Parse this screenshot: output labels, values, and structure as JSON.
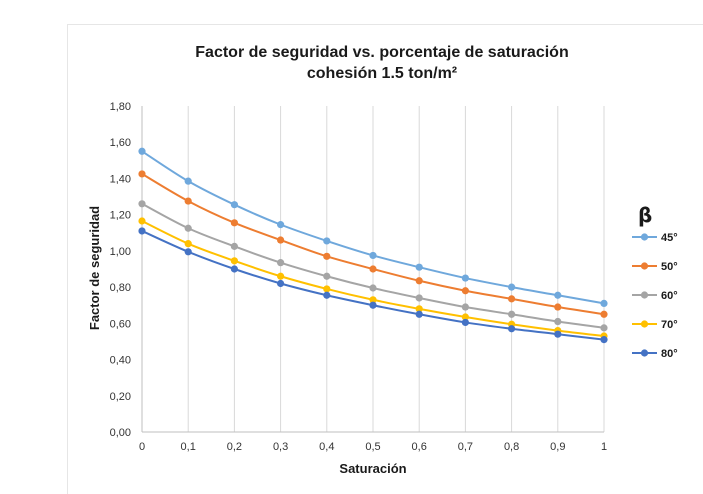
{
  "chart_data": {
    "type": "line",
    "title": "Factor de seguridad vs. porcentaje de saturación",
    "subtitle": "cohesión 1.5 ton/m²",
    "xlabel": "Saturación",
    "ylabel": "Factor de seguridad",
    "x": [
      0,
      0.1,
      0.2,
      0.3,
      0.4,
      0.5,
      0.6,
      0.7,
      0.8,
      0.9,
      1
    ],
    "x_tick_labels": [
      "0",
      "0,1",
      "0,2",
      "0,3",
      "0,4",
      "0,5",
      "0,6",
      "0,7",
      "0,8",
      "0,9",
      "1"
    ],
    "ylim": [
      0,
      1.8
    ],
    "y_ticks": [
      0,
      0.2,
      0.4,
      0.6,
      0.8,
      1.0,
      1.2,
      1.4,
      1.6,
      1.8
    ],
    "y_tick_labels": [
      "0,00",
      "0,20",
      "0,40",
      "0,60",
      "0,80",
      "1,00",
      "1,20",
      "1,40",
      "1,60",
      "1,80"
    ],
    "grid": "vertical",
    "legend_position": "right",
    "legend_title": "β",
    "series": [
      {
        "name": "45°",
        "color": "#6fa8dc",
        "values": [
          1.55,
          1.385,
          1.255,
          1.145,
          1.055,
          0.975,
          0.91,
          0.85,
          0.8,
          0.755,
          0.71
        ]
      },
      {
        "name": "50°",
        "color": "#ed7d31",
        "values": [
          1.425,
          1.275,
          1.155,
          1.06,
          0.97,
          0.9,
          0.835,
          0.78,
          0.735,
          0.69,
          0.65
        ]
      },
      {
        "name": "60°",
        "color": "#a5a5a5",
        "values": [
          1.26,
          1.125,
          1.025,
          0.935,
          0.86,
          0.795,
          0.74,
          0.69,
          0.65,
          0.61,
          0.575
        ]
      },
      {
        "name": "70°",
        "color": "#ffc000",
        "values": [
          1.165,
          1.04,
          0.945,
          0.86,
          0.79,
          0.73,
          0.68,
          0.635,
          0.595,
          0.56,
          0.53
        ]
      },
      {
        "name": "80°",
        "color": "#4472c4",
        "values": [
          1.11,
          0.995,
          0.9,
          0.82,
          0.755,
          0.7,
          0.65,
          0.605,
          0.57,
          0.54,
          0.51
        ]
      }
    ]
  }
}
